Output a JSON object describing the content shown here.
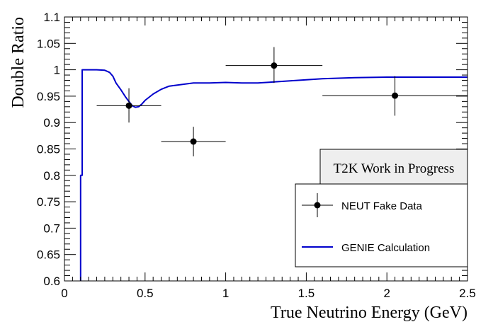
{
  "chart_data": {
    "type": "scatter",
    "xlabel": "True Neutrino Energy (GeV)",
    "ylabel": "Double Ratio",
    "xlim": [
      0,
      2.5
    ],
    "ylim": [
      0.6,
      1.1
    ],
    "x_ticks": [
      0,
      0.5,
      1,
      1.5,
      2,
      2.5
    ],
    "x_tick_labels": [
      "0",
      "0.5",
      "1",
      "1.5",
      "2",
      "2.5"
    ],
    "y_ticks": [
      0.6,
      0.65,
      0.7,
      0.75,
      0.8,
      0.85,
      0.9,
      0.95,
      1,
      1.05,
      1.1
    ],
    "y_tick_labels": [
      "0.6",
      "0.65",
      "0.7",
      "0.75",
      "0.8",
      "0.85",
      "0.9",
      "0.95",
      "1",
      "1.05",
      "1.1"
    ],
    "grid": false,
    "annotation": "T2K Work in Progress",
    "legend_position": "right",
    "series": [
      {
        "name": "NEUT Fake Data",
        "kind": "points_with_errors",
        "color": "#000000",
        "points": [
          {
            "x": 0.4,
            "y": 0.932,
            "xlo": 0.2,
            "xhi": 0.6,
            "ylo": 0.9,
            "yhi": 0.965
          },
          {
            "x": 0.8,
            "y": 0.864,
            "xlo": 0.6,
            "xhi": 1.0,
            "ylo": 0.836,
            "yhi": 0.892
          },
          {
            "x": 1.3,
            "y": 1.008,
            "xlo": 1.0,
            "xhi": 1.6,
            "ylo": 0.975,
            "yhi": 1.043
          },
          {
            "x": 2.05,
            "y": 0.951,
            "xlo": 1.6,
            "xhi": 2.5,
            "ylo": 0.913,
            "yhi": 0.988
          }
        ]
      },
      {
        "name": "GENIE Calculation",
        "kind": "line",
        "color": "#0000cc",
        "x": [
          0.1,
          0.1,
          0.11,
          0.11,
          0.12,
          0.15,
          0.2,
          0.25,
          0.28,
          0.3,
          0.32,
          0.35,
          0.38,
          0.4,
          0.42,
          0.44,
          0.46,
          0.48,
          0.5,
          0.55,
          0.6,
          0.65,
          0.7,
          0.8,
          0.9,
          1.0,
          1.1,
          1.2,
          1.3,
          1.4,
          1.5,
          1.6,
          1.7,
          1.8,
          2.0,
          2.2,
          2.5
        ],
        "y": [
          0.6,
          0.8,
          0.8,
          1.0,
          1.0,
          1.0,
          1.0,
          0.999,
          0.995,
          0.988,
          0.975,
          0.962,
          0.948,
          0.94,
          0.932,
          0.929,
          0.93,
          0.935,
          0.942,
          0.954,
          0.963,
          0.969,
          0.971,
          0.975,
          0.975,
          0.976,
          0.975,
          0.975,
          0.977,
          0.979,
          0.981,
          0.983,
          0.984,
          0.985,
          0.986,
          0.986,
          0.986
        ]
      }
    ]
  }
}
